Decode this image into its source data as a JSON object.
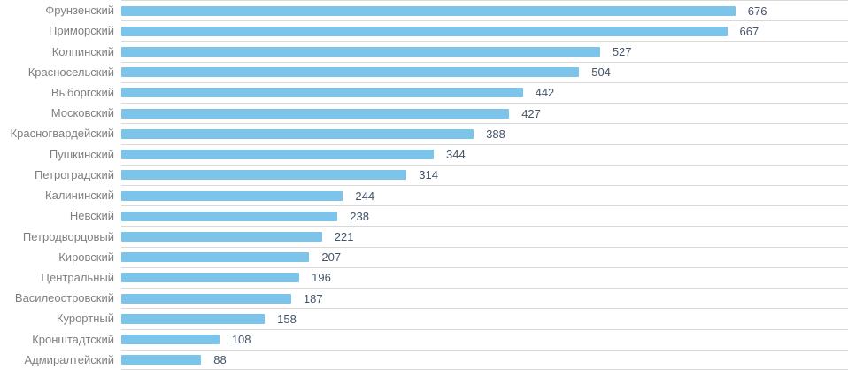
{
  "chart_data": {
    "type": "bar",
    "orientation": "horizontal",
    "title": "",
    "xlabel": "",
    "ylabel": "",
    "categories": [
      "Фрунзенский",
      "Приморский",
      "Колпинский",
      "Красносельский",
      "Выборгский",
      "Московский",
      "Красногвардейский",
      "Пушкинский",
      "Петроградский",
      "Калининский",
      "Невский",
      "Петродворцовый",
      "Кировский",
      "Центральный",
      "Василеостровский",
      "Курортный",
      "Кронштадтский",
      "Адмиралтейский"
    ],
    "values": [
      676,
      667,
      527,
      504,
      442,
      427,
      388,
      344,
      314,
      244,
      238,
      221,
      207,
      196,
      187,
      158,
      108,
      88
    ],
    "xlim": [
      0,
      800
    ],
    "legend": "none",
    "grid": "category-row-separators",
    "data_labels": "outside-end",
    "bar_color": "#7CC4EA",
    "category_label_color": "#7F7F7F",
    "value_label_color": "#44546A",
    "gridline_color": "#D9D9D9"
  }
}
